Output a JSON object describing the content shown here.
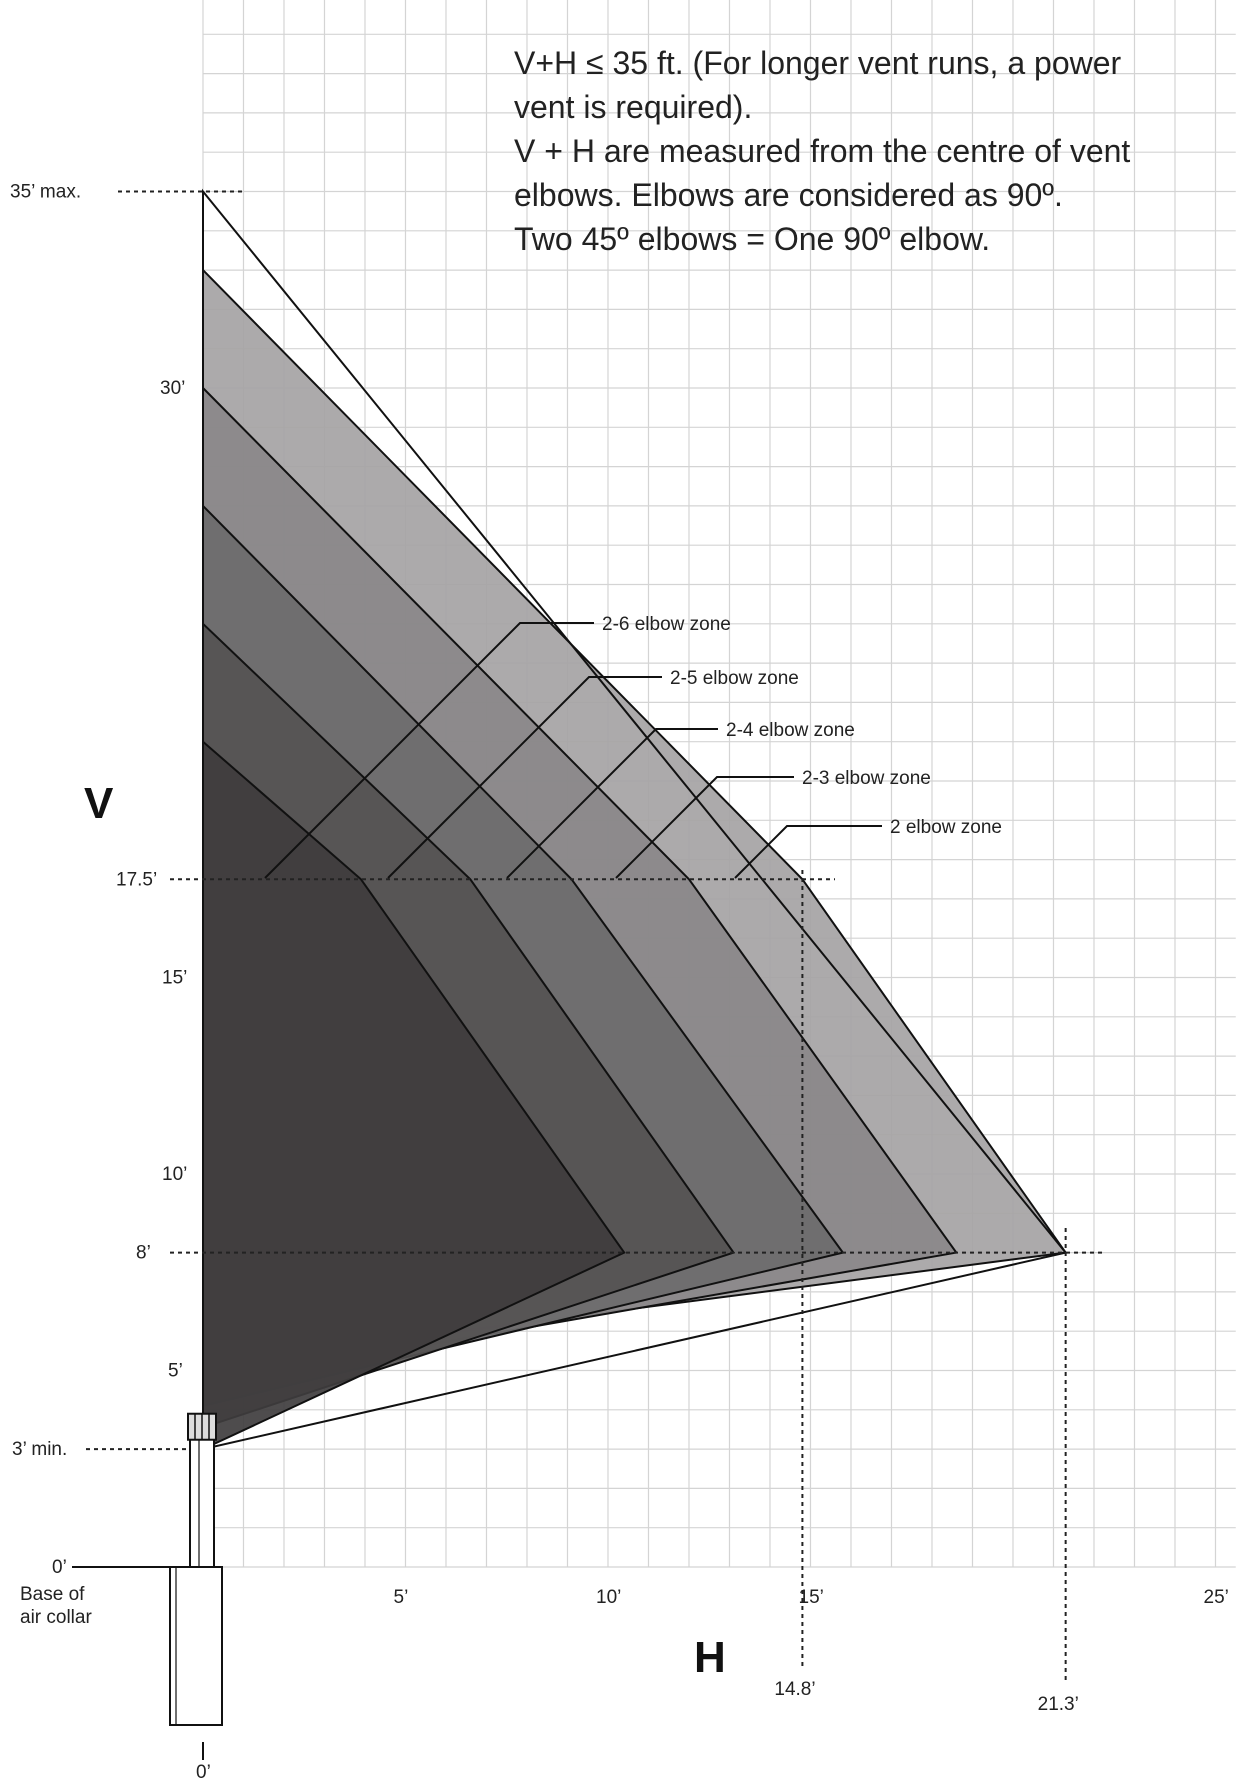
{
  "diagram": {
    "note_lines": [
      "V+H ≤ 35 ft. (For longer vent runs, a power",
      "vent is required).",
      "V + H are measured from the centre of vent",
      "elbows. Elbows are considered as 90º.",
      "Two 45º elbows = One 90º elbow."
    ],
    "v_axis_title": "V",
    "h_axis_title": "H",
    "v_tick_labels": [
      {
        "label": "35’ max.",
        "value": 35
      },
      {
        "label": "30’",
        "value": 30
      },
      {
        "label": "17.5’",
        "value": 17.5
      },
      {
        "label": "15’",
        "value": 15
      },
      {
        "label": "10’",
        "value": 10
      },
      {
        "label": "8’",
        "value": 8
      },
      {
        "label": "5’",
        "value": 5
      },
      {
        "label": "3’ min.",
        "value": 3
      },
      {
        "label": "0’",
        "value": 0
      }
    ],
    "h_tick_labels": [
      {
        "label": "5’",
        "value": 5
      },
      {
        "label": "10’",
        "value": 10
      },
      {
        "label": "15’",
        "value": 15
      },
      {
        "label": "25’",
        "value": 25
      }
    ],
    "h_markers": [
      {
        "label": "14.8’",
        "value": 14.8
      },
      {
        "label": "21.3’",
        "value": 21.3
      }
    ],
    "base_label_lines": [
      "Base of",
      "air collar"
    ],
    "bottom_zero_label": "0’",
    "zones": [
      {
        "label": "2-6 elbow zone",
        "top_v": 21,
        "knee_h": 3.9,
        "tip_h": 10.4,
        "color": "#3f3d3e"
      },
      {
        "label": "2-5 elbow zone",
        "top_v": 24,
        "knee_h": 6.6,
        "tip_h": 13.1,
        "color": "#555353"
      },
      {
        "label": "2-4 elbow zone",
        "top_v": 27,
        "knee_h": 9.1,
        "tip_h": 15.8,
        "color": "#6d6b6c"
      },
      {
        "label": "2-3 elbow zone",
        "top_v": 30,
        "knee_h": 12.0,
        "tip_h": 18.6,
        "color": "#8a8889"
      },
      {
        "label": "2 elbow zone",
        "top_v": 33,
        "knee_h": 14.8,
        "tip_h": 21.3,
        "color": "#a5a3a4"
      }
    ]
  }
}
